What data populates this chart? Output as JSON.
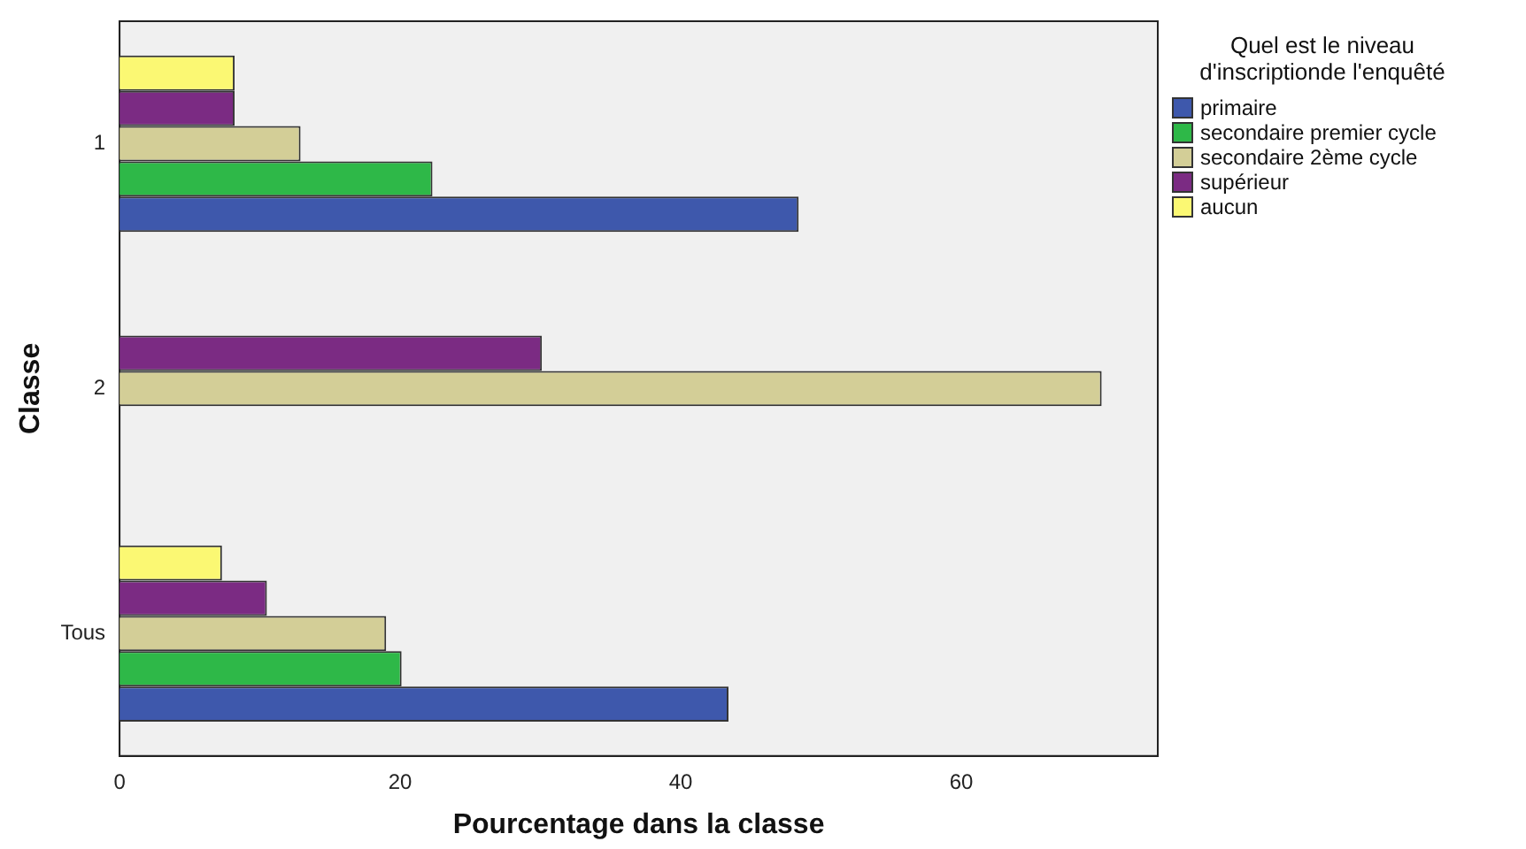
{
  "chart_data": {
    "type": "bar",
    "orientation": "horizontal",
    "xlabel": "Pourcentage dans la classe",
    "ylabel": "Classe",
    "legend_title": "Quel est le niveau d'inscriptionde l'enquêté",
    "legend": "right",
    "grid": false,
    "categories": [
      "1",
      "2",
      "Tous"
    ],
    "xlim": [
      0,
      74
    ],
    "xticks": [
      0,
      20,
      40,
      60
    ],
    "series": [
      {
        "name": "primaire",
        "color": "#3e58ac",
        "values": [
          48.4,
          0,
          43.4
        ]
      },
      {
        "name": "secondaire premier cycle",
        "color": "#2eb848",
        "values": [
          22.3,
          0,
          20.1
        ]
      },
      {
        "name": "secondaire 2ème cycle",
        "color": "#d3ce97",
        "values": [
          12.9,
          70,
          19
        ]
      },
      {
        "name": "supérieur",
        "color": "#7b2b83",
        "values": [
          8.2,
          30.1,
          10.5
        ]
      },
      {
        "name": "aucun",
        "color": "#fbf873",
        "values": [
          8.2,
          0,
          7.3
        ]
      }
    ]
  }
}
